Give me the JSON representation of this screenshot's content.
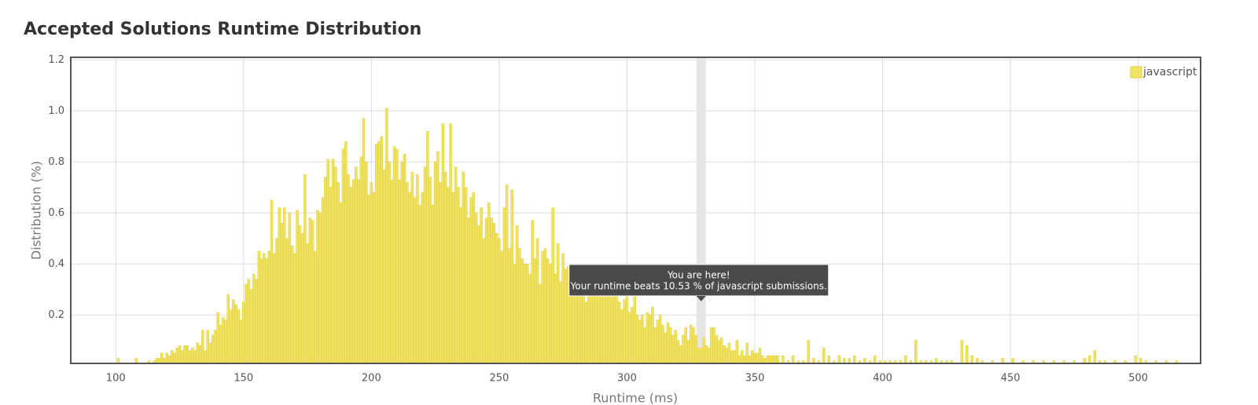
{
  "chart_data": {
    "type": "bar",
    "title": "Accepted Solutions Runtime Distribution",
    "x_label": "Runtime (ms)",
    "y_label": "Distribution (%)",
    "grid": true,
    "legend": "top-right",
    "xlim": [
      82.4,
      524.4
    ],
    "xticks": [
      100,
      150,
      200,
      250,
      300,
      350,
      400,
      450,
      500
    ],
    "ylim": [
      0.01,
      1.21
    ],
    "yticks": [
      0.2,
      0.4,
      0.6,
      0.8,
      {
        "value": 1,
        "label": "1.0"
      },
      1.2
    ],
    "x": [
      93,
      96,
      101,
      104,
      108,
      111,
      113,
      115,
      116,
      117,
      118,
      119,
      120,
      121,
      122,
      123,
      124,
      125,
      126,
      127,
      128,
      129,
      130,
      131,
      132,
      133,
      134,
      135,
      136,
      137,
      138,
      139,
      140,
      141,
      142,
      143,
      144,
      145,
      146,
      147,
      148,
      149,
      150,
      151,
      152,
      153,
      154,
      155,
      156,
      157,
      158,
      159,
      160,
      161,
      162,
      163,
      164,
      165,
      166,
      167,
      168,
      169,
      170,
      171,
      172,
      173,
      174,
      175,
      176,
      177,
      178,
      179,
      180,
      181,
      182,
      183,
      184,
      185,
      186,
      187,
      188,
      189,
      190,
      191,
      192,
      193,
      194,
      195,
      196,
      197,
      198,
      199,
      200,
      201,
      202,
      203,
      204,
      205,
      206,
      207,
      208,
      209,
      210,
      211,
      212,
      213,
      214,
      215,
      216,
      217,
      218,
      219,
      220,
      221,
      222,
      223,
      224,
      225,
      226,
      227,
      228,
      229,
      230,
      231,
      232,
      233,
      234,
      235,
      236,
      237,
      238,
      239,
      240,
      241,
      242,
      243,
      244,
      245,
      246,
      247,
      248,
      249,
      250,
      251,
      252,
      253,
      254,
      255,
      256,
      257,
      258,
      259,
      260,
      261,
      262,
      263,
      264,
      265,
      266,
      267,
      268,
      269,
      270,
      271,
      272,
      273,
      274,
      275,
      276,
      277,
      278,
      279,
      280,
      281,
      282,
      283,
      284,
      285,
      286,
      287,
      288,
      289,
      290,
      291,
      292,
      293,
      294,
      295,
      296,
      297,
      298,
      299,
      300,
      301,
      302,
      303,
      304,
      305,
      306,
      307,
      308,
      309,
      310,
      311,
      312,
      313,
      314,
      315,
      316,
      317,
      318,
      319,
      320,
      321,
      322,
      323,
      324,
      325,
      326,
      327,
      328,
      329,
      330,
      331,
      332,
      333,
      334,
      335,
      336,
      337,
      338,
      339,
      340,
      341,
      342,
      343,
      344,
      345,
      346,
      347,
      348,
      349,
      350,
      351,
      352,
      353,
      354,
      355,
      356,
      357,
      358,
      359,
      361,
      363,
      365,
      367,
      369,
      371,
      373,
      375,
      377,
      379,
      381,
      383,
      385,
      387,
      389,
      391,
      393,
      395,
      397,
      399,
      401,
      403,
      405,
      407,
      409,
      411,
      413,
      415,
      417,
      419,
      421,
      423,
      425,
      427,
      431,
      433,
      435,
      437,
      439,
      443,
      447,
      451,
      455,
      459,
      463,
      467,
      471,
      475,
      479,
      481,
      483,
      485,
      487,
      491,
      495,
      499,
      501,
      503,
      507,
      511,
      515
    ],
    "series": [
      {
        "name": "javascript",
        "color": "#f0e264",
        "values": [
          0.01,
          0.01,
          0.03,
          0.01,
          0.03,
          0.01,
          0.02,
          0.02,
          0.03,
          0.03,
          0.05,
          0.03,
          0.05,
          0.04,
          0.06,
          0.05,
          0.07,
          0.08,
          0.06,
          0.08,
          0.08,
          0.06,
          0.07,
          0.06,
          0.09,
          0.08,
          0.14,
          0.06,
          0.14,
          0.09,
          0.12,
          0.14,
          0.21,
          0.16,
          0.19,
          0.18,
          0.28,
          0.22,
          0.26,
          0.24,
          0.22,
          0.18,
          0.25,
          0.32,
          0.34,
          0.3,
          0.36,
          0.34,
          0.45,
          0.42,
          0.44,
          0.42,
          0.45,
          0.65,
          0.44,
          0.5,
          0.62,
          0.56,
          0.62,
          0.5,
          0.6,
          0.47,
          0.44,
          0.61,
          0.55,
          0.52,
          0.75,
          0.48,
          0.58,
          0.57,
          0.45,
          0.61,
          0.6,
          0.66,
          0.74,
          0.81,
          0.7,
          0.81,
          0.78,
          0.72,
          0.64,
          0.85,
          0.88,
          0.75,
          0.7,
          0.73,
          0.78,
          0.73,
          0.82,
          0.97,
          0.8,
          0.67,
          0.72,
          0.68,
          0.87,
          0.88,
          0.9,
          0.77,
          1.01,
          0.8,
          0.73,
          0.86,
          0.85,
          0.73,
          0.8,
          0.83,
          0.72,
          0.68,
          0.76,
          0.66,
          0.75,
          0.63,
          0.68,
          0.78,
          0.92,
          0.74,
          0.63,
          0.8,
          0.84,
          0.72,
          0.95,
          0.76,
          0.7,
          0.95,
          0.68,
          0.78,
          0.7,
          0.62,
          0.76,
          0.7,
          0.58,
          0.66,
          0.68,
          0.6,
          0.55,
          0.62,
          0.5,
          0.58,
          0.64,
          0.58,
          0.56,
          0.52,
          0.5,
          0.45,
          0.62,
          0.71,
          0.46,
          0.69,
          0.4,
          0.55,
          0.46,
          0.42,
          0.4,
          0.4,
          0.36,
          0.57,
          0.42,
          0.5,
          0.32,
          0.45,
          0.46,
          0.42,
          0.4,
          0.62,
          0.36,
          0.48,
          0.33,
          0.44,
          0.38,
          0.39,
          0.3,
          0.32,
          0.28,
          0.33,
          0.36,
          0.3,
          0.25,
          0.32,
          0.34,
          0.28,
          0.34,
          0.3,
          0.3,
          0.27,
          0.33,
          0.34,
          0.27,
          0.37,
          0.3,
          0.25,
          0.22,
          0.26,
          0.3,
          0.21,
          0.23,
          0.28,
          0.2,
          0.18,
          0.2,
          0.15,
          0.21,
          0.2,
          0.23,
          0.15,
          0.18,
          0.2,
          0.16,
          0.13,
          0.17,
          0.15,
          0.12,
          0.14,
          0.1,
          0.08,
          0.12,
          0.15,
          0.1,
          0.16,
          0.15,
          0.12,
          0.07,
          0.07,
          0.11,
          0.08,
          0.07,
          0.15,
          0.15,
          0.12,
          0.1,
          0.11,
          0.08,
          0.07,
          0.09,
          0.06,
          0.06,
          0.1,
          0.04,
          0.06,
          0.04,
          0.09,
          0.04,
          0.06,
          0.05,
          0.05,
          0.07,
          0.04,
          0.03,
          0.04,
          0.04,
          0.04,
          0.04,
          0.04,
          0.04,
          0.02,
          0.04,
          0.02,
          0.02,
          0.1,
          0.03,
          0.02,
          0.07,
          0.04,
          0.02,
          0.04,
          0.03,
          0.03,
          0.04,
          0.02,
          0.03,
          0.02,
          0.04,
          0.02,
          0.02,
          0.02,
          0.02,
          0.02,
          0.04,
          0.02,
          0.1,
          0.02,
          0.02,
          0.02,
          0.03,
          0.02,
          0.02,
          0.02,
          0.1,
          0.08,
          0.04,
          0.03,
          0.02,
          0.02,
          0.03,
          0.03,
          0.02,
          0.02,
          0.02,
          0.02,
          0.02,
          0.02,
          0.03,
          0.04,
          0.06,
          0.02,
          0.02,
          0.02,
          0.02,
          0.04,
          0.03,
          0.02,
          0.02,
          0.02,
          0.02
        ]
      }
    ],
    "highlight": {
      "x": 329,
      "title": "You are here!",
      "text": "Your runtime beats 10.53 % of javascript submissions."
    }
  }
}
